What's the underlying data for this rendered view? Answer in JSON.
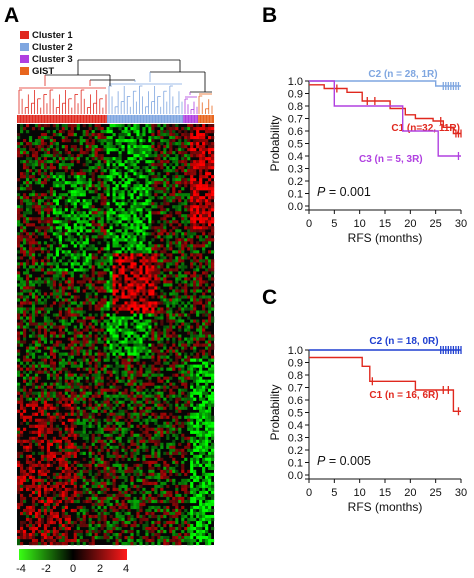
{
  "panel_labels": {
    "a": "A",
    "b": "B",
    "c": "C"
  },
  "heatmap": {
    "legend": [
      "Cluster 1",
      "Cluster 2",
      "Cluster 3",
      "GIST"
    ],
    "legend_colors": [
      "#e0281e",
      "#7fa6e0",
      "#b040e0",
      "#e8661e"
    ],
    "colorbar_ticks": [
      "-4",
      "-2",
      "0",
      "2",
      "4"
    ]
  },
  "chart_data": [
    {
      "type": "line",
      "panel": "B",
      "xlabel": "RFS (months)",
      "ylabel": "Probability",
      "xlim": [
        0,
        30
      ],
      "ylim": [
        0,
        1.0
      ],
      "xticks": [
        "0",
        "5",
        "10",
        "15",
        "20",
        "25",
        "30"
      ],
      "yticks": [
        "0.0",
        "0.1",
        "0.2",
        "0.3",
        "0.4",
        "0.5",
        "0.6",
        "0.7",
        "0.8",
        "0.9",
        "1.0"
      ],
      "annotation": "P = 0.001",
      "annotation_italic": "P",
      "annotation_rest": " = 0.001",
      "series": [
        {
          "name": "C2 (n = 28, 1R)",
          "color": "#7fa6e0",
          "steps": [
            [
              0,
              1.0
            ],
            [
              25,
              0.96
            ],
            [
              30,
              0.96
            ]
          ],
          "censors": [
            26.5,
            27,
            27.5,
            28,
            28.5,
            29,
            29.5
          ]
        },
        {
          "name": "C1 (n=32, 11R)",
          "color": "#e0281e",
          "steps": [
            [
              0,
              0.97
            ],
            [
              3,
              0.94
            ],
            [
              7.5,
              0.91
            ],
            [
              10.5,
              0.84
            ],
            [
              13,
              0.84
            ],
            [
              16,
              0.78
            ],
            [
              19,
              0.73
            ],
            [
              21,
              0.7
            ],
            [
              24.5,
              0.68
            ],
            [
              26.5,
              0.63
            ],
            [
              28.5,
              0.58
            ],
            [
              30,
              0.58
            ]
          ],
          "censors": [
            5.5,
            11.5,
            13,
            26,
            29,
            29.5,
            30
          ]
        },
        {
          "name": "C3 (n = 5, 3R)",
          "color": "#b040e0",
          "steps": [
            [
              0,
              1.0
            ],
            [
              5,
              0.8
            ],
            [
              18.5,
              0.6
            ],
            [
              25.5,
              0.4
            ],
            [
              30,
              0.4
            ]
          ],
          "censors": [
            29.5
          ]
        }
      ]
    },
    {
      "type": "line",
      "panel": "C",
      "xlabel": "RFS (months)",
      "ylabel": "Probability",
      "xlim": [
        0,
        30
      ],
      "ylim": [
        0,
        1.0
      ],
      "xticks": [
        "0",
        "5",
        "10",
        "15",
        "20",
        "25",
        "30"
      ],
      "yticks": [
        "0.0",
        "0.1",
        "0.2",
        "0.3",
        "0.4",
        "0.5",
        "0.6",
        "0.7",
        "0.8",
        "0.9",
        "1.0"
      ],
      "annotation": "P = 0.005",
      "annotation_italic": "P",
      "annotation_rest": " = 0.005",
      "series": [
        {
          "name": "C2 (n = 18, 0R)",
          "color": "#1f3fd0",
          "steps": [
            [
              0,
              1.0
            ],
            [
              30,
              1.0
            ]
          ],
          "censors": [
            26,
            26.5,
            27,
            27.5,
            28,
            28.5,
            29,
            29.5,
            30
          ]
        },
        {
          "name": "C1 (n = 16, 6R)",
          "color": "#e0281e",
          "steps": [
            [
              0,
              0.94
            ],
            [
              10.5,
              0.87
            ],
            [
              12,
              0.75
            ],
            [
              21,
              0.68
            ],
            [
              28.5,
              0.51
            ],
            [
              30,
              0.51
            ]
          ],
          "censors": [
            12.5,
            26.5,
            27.5,
            29.5
          ]
        }
      ]
    }
  ]
}
